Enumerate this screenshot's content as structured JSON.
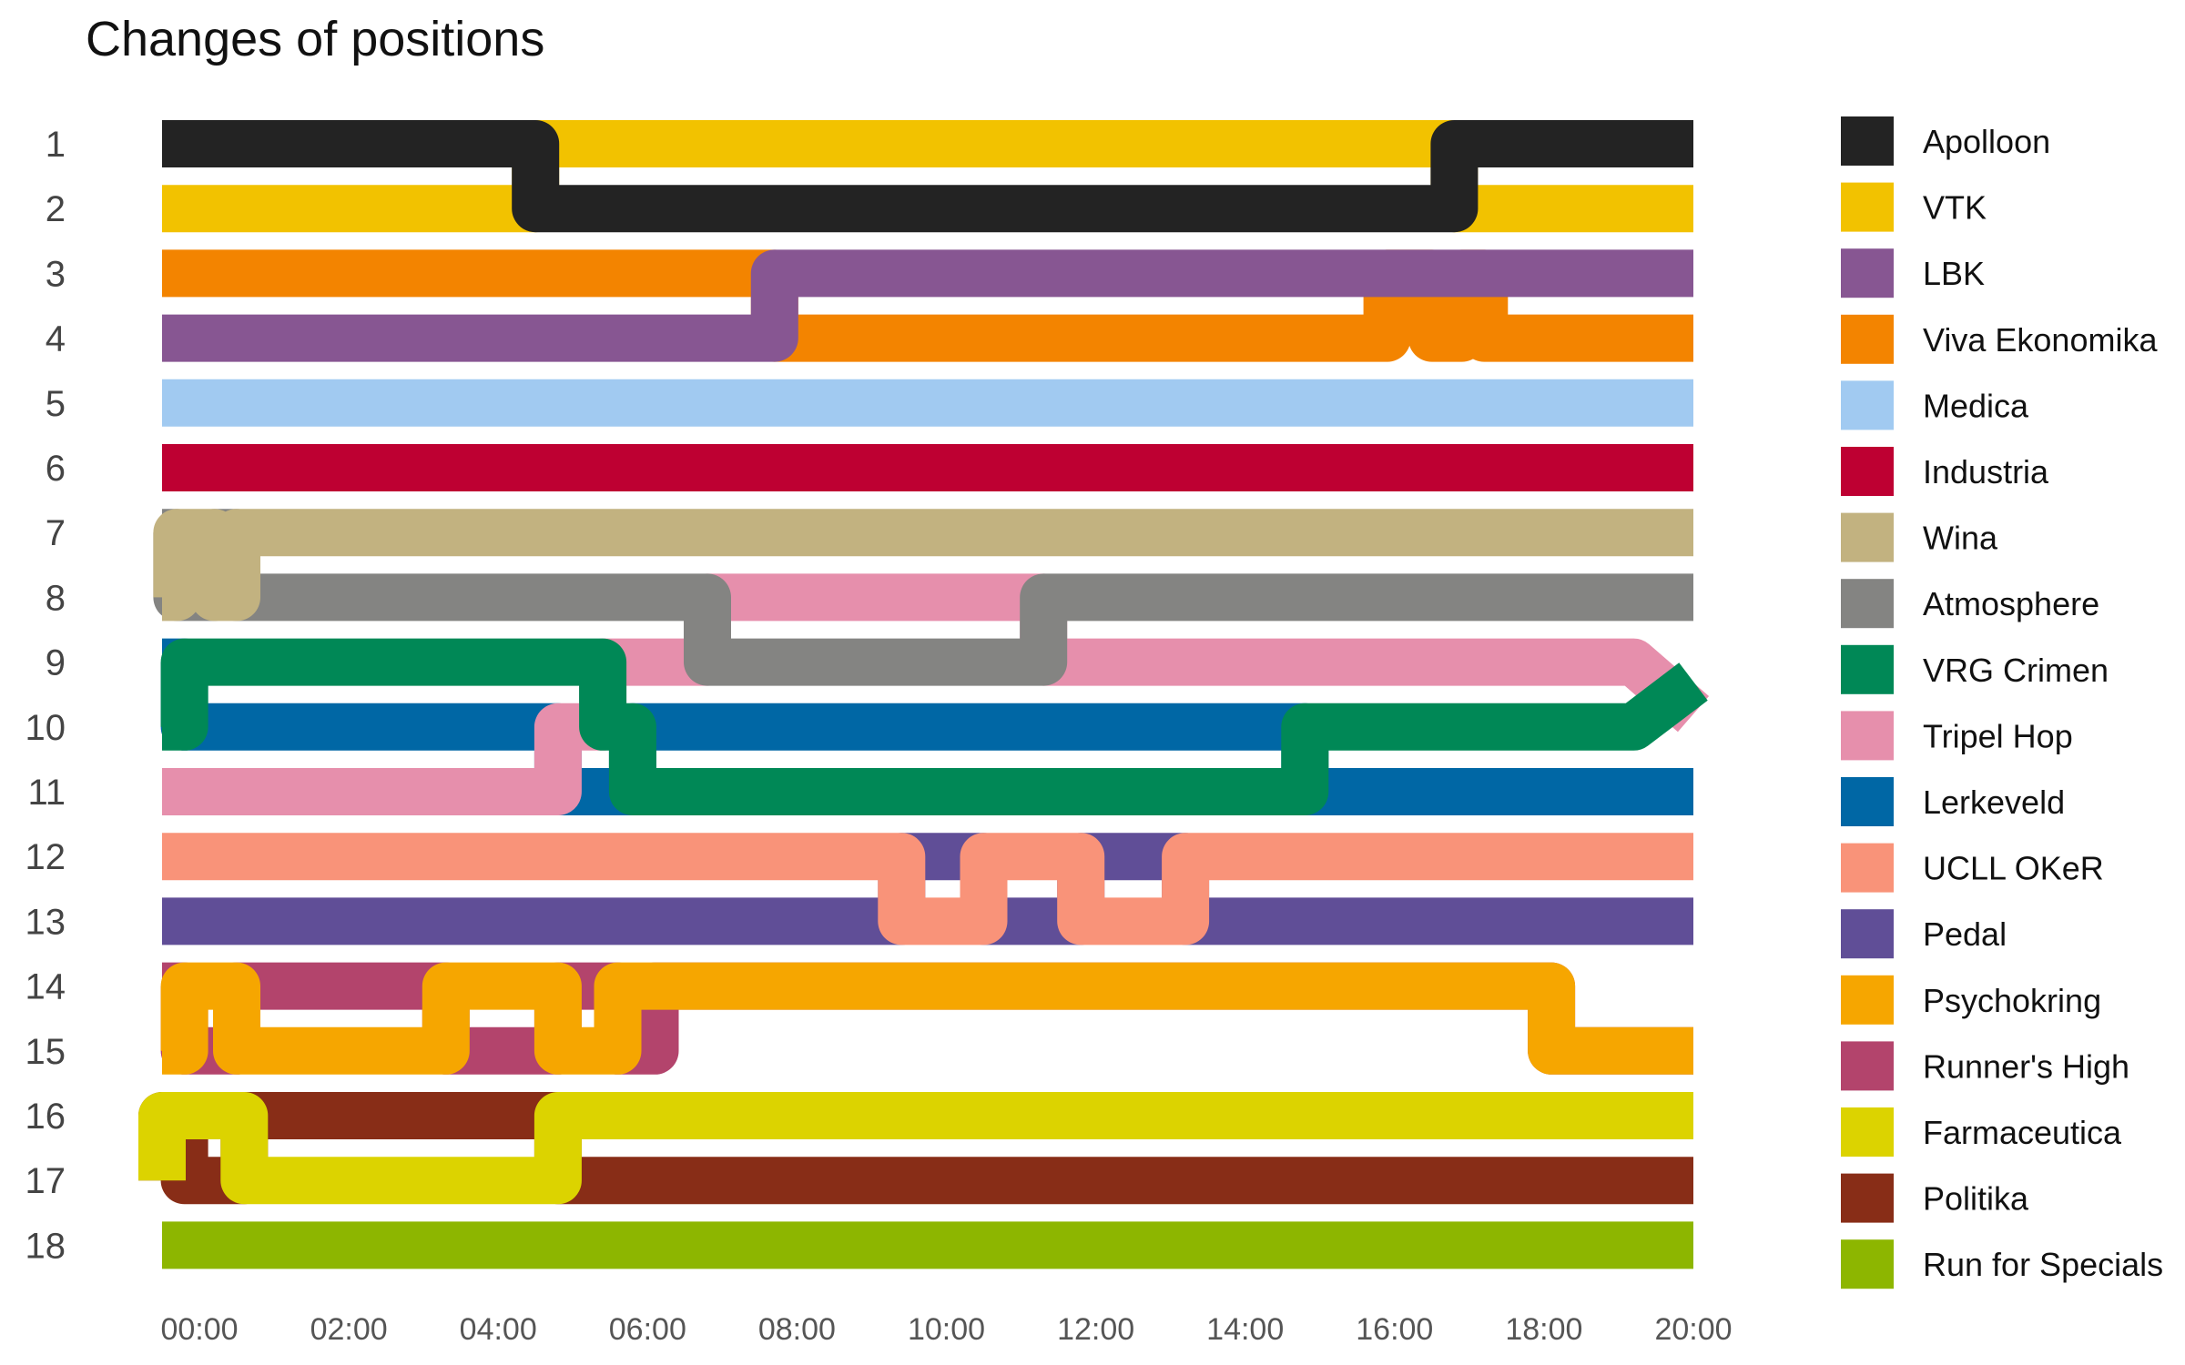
{
  "chart_data": {
    "type": "line",
    "title": "Changes of positions",
    "xlabel": "",
    "ylabel": "",
    "x_ticks": [
      "00:00",
      "02:00",
      "04:00",
      "06:00",
      "08:00",
      "10:00",
      "12:00",
      "14:00",
      "16:00",
      "18:00",
      "20:00"
    ],
    "x_range_hours": [
      -0.5,
      20
    ],
    "y_ticks": [
      "1",
      "2",
      "3",
      "4",
      "5",
      "6",
      "7",
      "8",
      "9",
      "10",
      "11",
      "12",
      "13",
      "14",
      "15",
      "16",
      "17",
      "18"
    ],
    "y_range_position": [
      1,
      18
    ],
    "y_reversed": true,
    "legend_position": "right",
    "grid": false,
    "series": [
      {
        "name": "Apolloon",
        "color": "#232323",
        "points": [
          [
            -0.5,
            1
          ],
          [
            4.5,
            1
          ],
          [
            4.5,
            2
          ],
          [
            16.8,
            2
          ],
          [
            16.8,
            1
          ],
          [
            20,
            1
          ]
        ]
      },
      {
        "name": "VTK",
        "color": "#F2C200",
        "points": [
          [
            -0.5,
            2
          ],
          [
            4.5,
            2
          ],
          [
            4.5,
            1
          ],
          [
            16.8,
            1
          ],
          [
            16.8,
            2
          ],
          [
            20,
            2
          ]
        ]
      },
      {
        "name": "LBK",
        "color": "#875692",
        "points": [
          [
            -0.5,
            4
          ],
          [
            7.7,
            4
          ],
          [
            7.7,
            3
          ],
          [
            20,
            3
          ]
        ]
      },
      {
        "name": "Viva Ekonomika",
        "color": "#F38400",
        "points": [
          [
            -0.5,
            3
          ],
          [
            7.7,
            3
          ],
          [
            7.7,
            4
          ],
          [
            15.9,
            4
          ],
          [
            15.9,
            3
          ],
          [
            16.5,
            3
          ],
          [
            16.5,
            4
          ],
          [
            16.9,
            4
          ],
          [
            16.9,
            3
          ],
          [
            17.2,
            3
          ],
          [
            17.2,
            4
          ],
          [
            20,
            4
          ]
        ]
      },
      {
        "name": "Medica",
        "color": "#A1CAF1",
        "points": [
          [
            -0.5,
            5
          ],
          [
            20,
            5
          ]
        ]
      },
      {
        "name": "Industria",
        "color": "#BE0032",
        "points": [
          [
            -0.5,
            6
          ],
          [
            20,
            6
          ]
        ]
      },
      {
        "name": "Wina",
        "color": "#C2B280",
        "points": [
          [
            -0.5,
            8
          ],
          [
            -0.3,
            8
          ],
          [
            -0.3,
            7
          ],
          [
            0.2,
            7
          ],
          [
            0.2,
            8
          ],
          [
            0.5,
            8
          ],
          [
            0.5,
            7
          ],
          [
            20,
            7
          ]
        ]
      },
      {
        "name": "Atmosphere",
        "color": "#848482",
        "points": [
          [
            -0.5,
            7
          ],
          [
            -0.3,
            7
          ],
          [
            -0.3,
            8
          ],
          [
            0.2,
            8
          ],
          [
            0.2,
            7
          ],
          [
            0.5,
            7
          ],
          [
            0.5,
            8
          ],
          [
            6.8,
            8
          ],
          [
            6.8,
            9
          ],
          [
            11.3,
            9
          ],
          [
            11.3,
            8
          ],
          [
            20,
            8
          ]
        ]
      },
      {
        "name": "VRG Crimen",
        "color": "#008856",
        "points": [
          [
            -0.5,
            10
          ],
          [
            -0.2,
            10
          ],
          [
            -0.2,
            9
          ],
          [
            5.4,
            9
          ],
          [
            5.4,
            10
          ],
          [
            5.8,
            10
          ],
          [
            5.8,
            11
          ],
          [
            14.8,
            11
          ],
          [
            14.8,
            10
          ],
          [
            19.2,
            10
          ],
          [
            20,
            9.3
          ]
        ]
      },
      {
        "name": "Tripel Hop",
        "color": "#E68FAC",
        "points": [
          [
            -0.5,
            11
          ],
          [
            4.8,
            11
          ],
          [
            4.8,
            10
          ],
          [
            5.4,
            10
          ],
          [
            5.4,
            9
          ],
          [
            6.8,
            9
          ],
          [
            6.8,
            8
          ],
          [
            11.3,
            8
          ],
          [
            11.3,
            9
          ],
          [
            19.2,
            9
          ],
          [
            20,
            9.8
          ]
        ]
      },
      {
        "name": "Lerkeveld",
        "color": "#0067A5",
        "points": [
          [
            -0.5,
            9
          ],
          [
            -0.2,
            9
          ],
          [
            -0.2,
            10
          ],
          [
            4.8,
            10
          ],
          [
            4.8,
            11
          ],
          [
            5.8,
            11
          ],
          [
            5.8,
            10
          ],
          [
            14.8,
            10
          ],
          [
            14.8,
            11
          ],
          [
            20,
            11
          ]
        ]
      },
      {
        "name": "UCLL OKeR",
        "color": "#F99379",
        "points": [
          [
            -0.5,
            12
          ],
          [
            9.4,
            12
          ],
          [
            9.4,
            13
          ],
          [
            10.5,
            13
          ],
          [
            10.5,
            12
          ],
          [
            11.8,
            12
          ],
          [
            11.8,
            13
          ],
          [
            13.2,
            13
          ],
          [
            13.2,
            12
          ],
          [
            20,
            12
          ]
        ]
      },
      {
        "name": "Pedal",
        "color": "#604E97",
        "points": [
          [
            -0.5,
            13
          ],
          [
            9.4,
            13
          ],
          [
            9.4,
            12
          ],
          [
            10.5,
            12
          ],
          [
            10.5,
            13
          ],
          [
            11.8,
            13
          ],
          [
            11.8,
            12
          ],
          [
            13.2,
            12
          ],
          [
            13.2,
            13
          ],
          [
            20,
            13
          ]
        ]
      },
      {
        "name": "Psychokring",
        "color": "#F6A600",
        "points": [
          [
            -0.5,
            15
          ],
          [
            -0.2,
            15
          ],
          [
            -0.2,
            14
          ],
          [
            0.5,
            14
          ],
          [
            0.5,
            15
          ],
          [
            3.3,
            15
          ],
          [
            3.3,
            14
          ],
          [
            4.8,
            14
          ],
          [
            4.8,
            15
          ],
          [
            5.6,
            15
          ],
          [
            5.6,
            14
          ],
          [
            18.1,
            14
          ],
          [
            18.1,
            15
          ],
          [
            20,
            15
          ]
        ]
      },
      {
        "name": "Runner's High",
        "color": "#B3446C",
        "points": [
          [
            -0.5,
            14
          ],
          [
            -0.2,
            14
          ],
          [
            -0.2,
            15
          ],
          [
            0.5,
            15
          ],
          [
            0.5,
            14
          ],
          [
            3.3,
            14
          ],
          [
            3.3,
            15
          ],
          [
            4.8,
            15
          ],
          [
            4.8,
            14
          ],
          [
            5.6,
            14
          ],
          [
            5.6,
            15
          ],
          [
            6.1,
            15
          ],
          [
            6.1,
            14
          ],
          [
            18.1,
            14
          ],
          [
            18.1,
            15
          ],
          [
            20,
            15
          ]
        ]
      },
      {
        "name": "Farmaceutica",
        "color": "#DCD300",
        "points": [
          [
            -0.5,
            17
          ],
          [
            -0.5,
            16
          ],
          [
            0.6,
            16
          ],
          [
            0.6,
            17
          ],
          [
            4.8,
            17
          ],
          [
            4.8,
            16
          ],
          [
            20,
            16
          ]
        ]
      },
      {
        "name": "Politika",
        "color": "#882D17",
        "points": [
          [
            -0.5,
            17
          ],
          [
            -0.5,
            16
          ],
          [
            -0.2,
            16
          ],
          [
            -0.2,
            17
          ],
          [
            0.6,
            17
          ],
          [
            0.6,
            16
          ],
          [
            4.8,
            16
          ],
          [
            4.8,
            17
          ],
          [
            20,
            17
          ]
        ]
      },
      {
        "name": "Run for Specials",
        "color": "#8DB600",
        "points": [
          [
            -0.5,
            18
          ],
          [
            20,
            18
          ]
        ]
      }
    ]
  }
}
